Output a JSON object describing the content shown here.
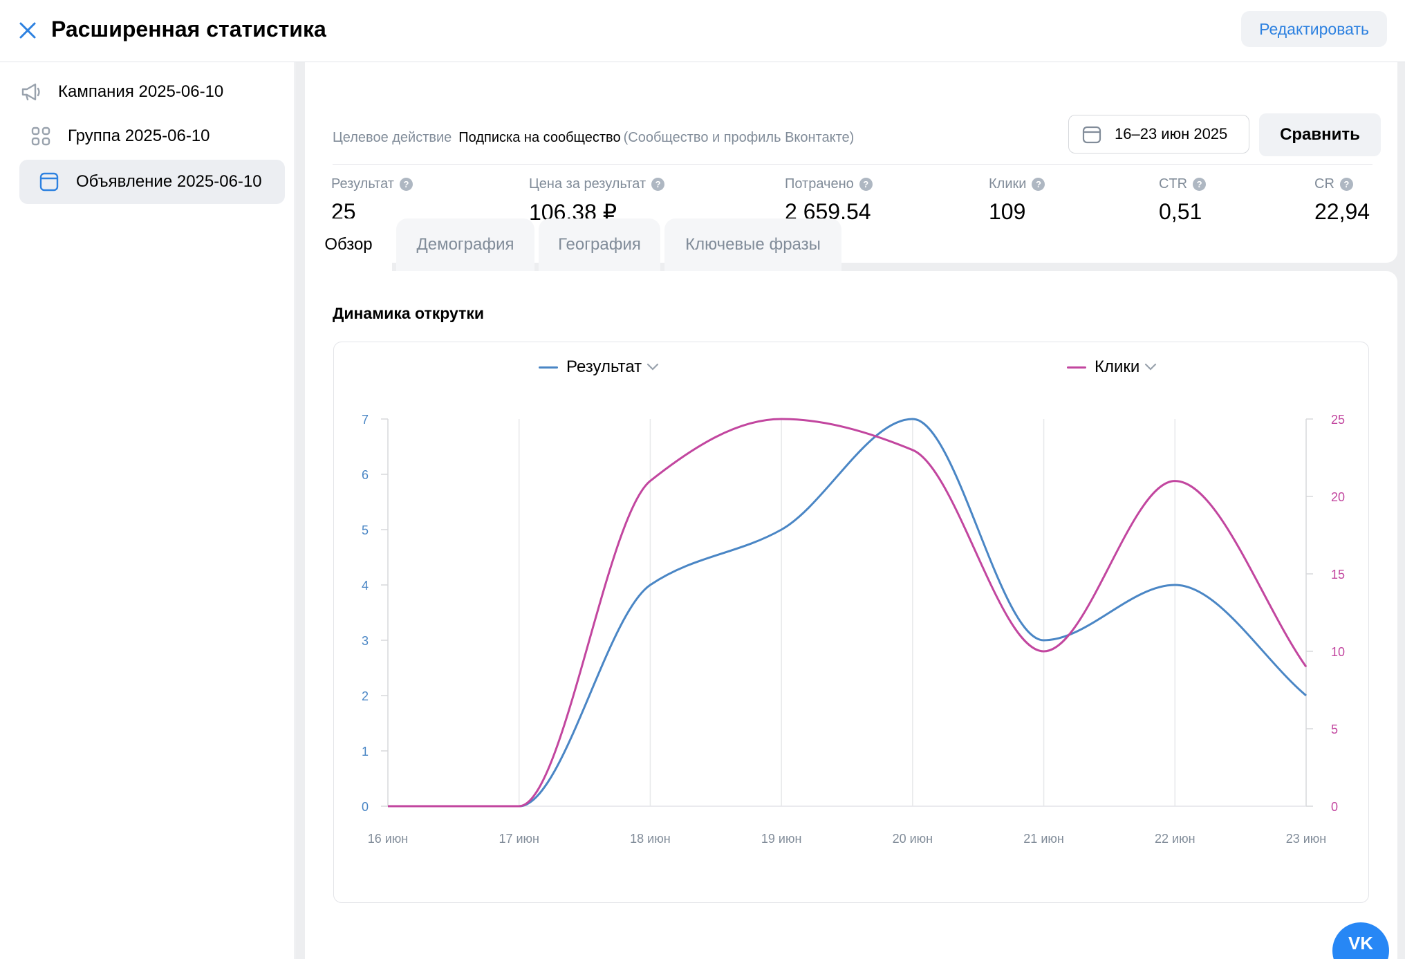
{
  "header": {
    "title": "Расширенная статистика",
    "edit_label": "Редактировать"
  },
  "sidebar": {
    "items": [
      {
        "label": "Кампания 2025-06-10",
        "icon": "megaphone-icon"
      },
      {
        "label": "Группа 2025-06-10",
        "icon": "grid-icon"
      },
      {
        "label": "Объявление 2025-06-10",
        "icon": "ad-window-icon",
        "active": true
      }
    ]
  },
  "summary": {
    "date_range": "16–23 июн 2025",
    "compare_label": "Сравнить",
    "target_label": "Целевое действие",
    "target_value": "Подписка на сообщество",
    "target_sub": "(Сообщество и профиль Вконтакте)",
    "metrics": [
      {
        "label": "Результат",
        "value": "25"
      },
      {
        "label": "Цена за результат",
        "value": "106,38 ₽"
      },
      {
        "label": "Потрачено",
        "value": "2 659.54"
      },
      {
        "label": "Клики",
        "value": "109"
      },
      {
        "label": "CTR",
        "value": "0,51"
      },
      {
        "label": "CR",
        "value": "22,94"
      }
    ]
  },
  "tabs": [
    {
      "label": "Обзор",
      "active": true
    },
    {
      "label": "Демография"
    },
    {
      "label": "География"
    },
    {
      "label": "Ключевые фразы"
    }
  ],
  "section_title": "Динамика открутки",
  "colors": {
    "accent": "#2d81e0",
    "result": "#4a86c5",
    "clicks": "#c2469f"
  },
  "chart_data": {
    "type": "line",
    "x": [
      "16 июн",
      "17 июн",
      "18 июн",
      "19 июн",
      "20 июн",
      "21 июн",
      "22 июн",
      "23 июн"
    ],
    "series": [
      {
        "name": "Результат",
        "axis": "left",
        "values": [
          0,
          0,
          4,
          5,
          7,
          3,
          4,
          2
        ]
      },
      {
        "name": "Клики",
        "axis": "right",
        "values": [
          0,
          0,
          21,
          25,
          23,
          10,
          21,
          9
        ]
      }
    ],
    "y_left": {
      "range": [
        0,
        7
      ],
      "ticks": [
        0,
        1,
        2,
        3,
        4,
        5,
        6,
        7
      ]
    },
    "y_right": {
      "range": [
        0,
        25
      ],
      "ticks": [
        0,
        5,
        10,
        15,
        20,
        25
      ]
    },
    "grid": "vertical",
    "legend": "top"
  },
  "vk_badge": "VK"
}
